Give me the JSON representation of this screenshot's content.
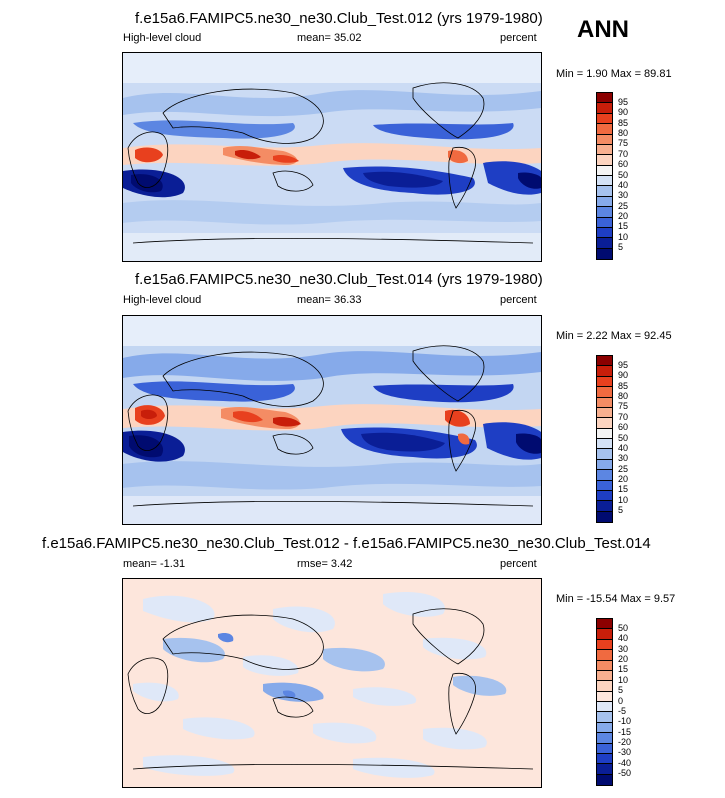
{
  "season": "ANN",
  "panels": [
    {
      "title": "f.e15a6.FAMIPC5.ne30_ne30.Club_Test.012 (yrs 1979-1980)",
      "left_label": "High-level cloud",
      "center_label": "mean=  35.02",
      "right_label": "percent",
      "minmax": "Min =  1.90 Max =  89.81"
    },
    {
      "title": "f.e15a6.FAMIPC5.ne30_ne30.Club_Test.014 (yrs 1979-1980)",
      "left_label": "High-level cloud",
      "center_label": "mean=  36.33",
      "right_label": "percent",
      "minmax": "Min =  2.22 Max =  92.45"
    },
    {
      "title": "f.e15a6.FAMIPC5.ne30_ne30.Club_Test.012 - f.e15a6.FAMIPC5.ne30_ne30.Club_Test.014",
      "left_label": "mean=  -1.31",
      "center_label": "rmse=   3.42",
      "right_label": "percent",
      "minmax": "Min = -15.54 Max =   9.57"
    }
  ],
  "colorbars": [
    {
      "levels": [
        "95",
        "90",
        "85",
        "80",
        "75",
        "70",
        "60",
        "50",
        "40",
        "30",
        "25",
        "20",
        "15",
        "10",
        "5"
      ],
      "colors": [
        "#8b0000",
        "#c81e0a",
        "#e8401e",
        "#f06a40",
        "#f48c64",
        "#f8b090",
        "#fcd4c0",
        "#f4f4f4",
        "#d4e2f6",
        "#a6c2ee",
        "#86aaea",
        "#5c86e2",
        "#3a62d8",
        "#1e3ec4",
        "#0a1e96",
        "#000b70"
      ]
    },
    {
      "levels": [
        "95",
        "90",
        "85",
        "80",
        "75",
        "70",
        "60",
        "50",
        "40",
        "30",
        "25",
        "20",
        "15",
        "10",
        "5"
      ],
      "colors": [
        "#8b0000",
        "#c81e0a",
        "#e8401e",
        "#f06a40",
        "#f48c64",
        "#f8b090",
        "#fcd4c0",
        "#f4f4f4",
        "#d4e2f6",
        "#a6c2ee",
        "#86aaea",
        "#5c86e2",
        "#3a62d8",
        "#1e3ec4",
        "#0a1e96",
        "#000b70"
      ]
    },
    {
      "levels": [
        "50",
        "40",
        "30",
        "20",
        "15",
        "10",
        "5",
        "0",
        "-5",
        "-10",
        "-15",
        "-20",
        "-30",
        "-40",
        "-50"
      ],
      "colors": [
        "#8b0000",
        "#c81e0a",
        "#e8401e",
        "#f06a40",
        "#f48c64",
        "#f8b090",
        "#fcd4c0",
        "#fde6dc",
        "#dfe8f8",
        "#a6c2ee",
        "#86aaea",
        "#5c86e2",
        "#3a62d8",
        "#1e3ec4",
        "#0a1e96",
        "#000b70"
      ]
    }
  ],
  "chart_data": [
    {
      "type": "heatmap",
      "title": "f.e15a6.FAMIPC5.ne30_ne30.Club_Test.012 (yrs 1979-1980)",
      "variable": "High-level cloud",
      "units": "percent",
      "mean": 35.02,
      "min": 1.9,
      "max": 89.81,
      "contour_levels": [
        5,
        10,
        15,
        20,
        25,
        30,
        40,
        50,
        60,
        70,
        75,
        80,
        85,
        90,
        95
      ]
    },
    {
      "type": "heatmap",
      "title": "f.e15a6.FAMIPC5.ne30_ne30.Club_Test.014 (yrs 1979-1980)",
      "variable": "High-level cloud",
      "units": "percent",
      "mean": 36.33,
      "min": 2.22,
      "max": 92.45,
      "contour_levels": [
        5,
        10,
        15,
        20,
        25,
        30,
        40,
        50,
        60,
        70,
        75,
        80,
        85,
        90,
        95
      ]
    },
    {
      "type": "heatmap",
      "title": "f.e15a6.FAMIPC5.ne30_ne30.Club_Test.012 - f.e15a6.FAMIPC5.ne30_ne30.Club_Test.014",
      "units": "percent",
      "mean": -1.31,
      "rmse": 3.42,
      "min": -15.54,
      "max": 9.57,
      "contour_levels": [
        -50,
        -40,
        -30,
        -20,
        -15,
        -10,
        -5,
        0,
        5,
        10,
        15,
        20,
        30,
        40,
        50
      ]
    }
  ]
}
